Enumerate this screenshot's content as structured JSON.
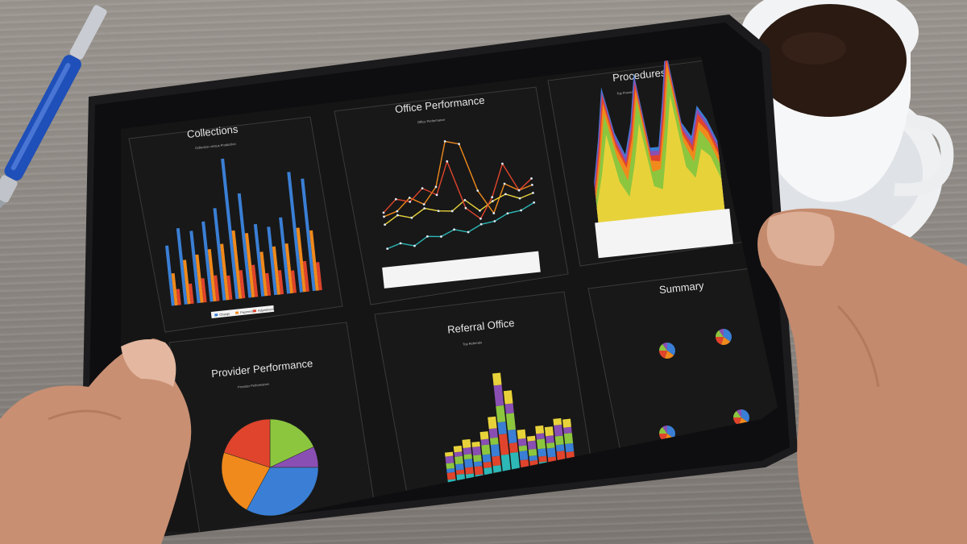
{
  "dashboard": {
    "panels": [
      {
        "id": "collections",
        "title": "Collections",
        "subtitle": "Collection versus Production"
      },
      {
        "id": "office",
        "title": "Office Performance",
        "subtitle": "Office Performance"
      },
      {
        "id": "procedures",
        "title": "Procedures",
        "subtitle": "Top Procedure"
      },
      {
        "id": "provider",
        "title": "Provider Performance",
        "subtitle": "Provider Performance"
      },
      {
        "id": "referral",
        "title": "Referral Office",
        "subtitle": "Top Referrals"
      },
      {
        "id": "summary",
        "title": "Summary"
      }
    ],
    "collections_legend": [
      "Charge",
      "Payment",
      "Adjustment"
    ]
  },
  "colors": {
    "screen_bg": "#151515",
    "panel_border": "#3a3a3a",
    "blue": "#3a7fd5",
    "orange": "#f08a1c",
    "red": "#e0442c",
    "green": "#8cc63f",
    "purple": "#8a4fb3",
    "teal": "#2db7b7",
    "yellow": "#e8d23a"
  },
  "objects": {
    "pen": "blue-ballpoint-pen",
    "cup": "coffee-cup-on-saucer",
    "hands": "two-hands-holding-tablet"
  }
}
